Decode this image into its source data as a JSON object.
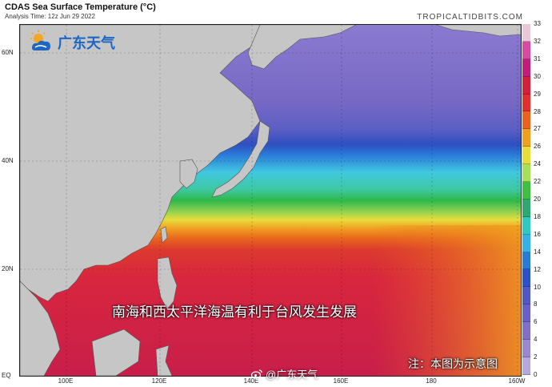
{
  "header": {
    "title": "CDAS Sea Surface Temperature (°C)",
    "subtitle": "Analysis Time: 12z Jun 29 2022",
    "source": "TROPICALTIDBITS.COM"
  },
  "map": {
    "lat_labels": [
      {
        "label": "60N"
      },
      {
        "label": "40N"
      },
      {
        "label": "20N"
      },
      {
        "label": "EQ"
      }
    ],
    "lon_labels": [
      {
        "label": "100E"
      },
      {
        "label": "120E"
      },
      {
        "label": "140E"
      },
      {
        "label": "160E"
      },
      {
        "label": "180"
      },
      {
        "label": "160W"
      }
    ],
    "colors": {
      "land": "#c6c6c6",
      "sst_cold": "#7d6cc8",
      "sst_mid": "#3db2e8",
      "sst_warm": "#e8dd3e",
      "sst_hot": "#c81e3c"
    }
  },
  "colorbar": {
    "levels": [
      "33",
      "32",
      "31",
      "30",
      "29",
      "28",
      "27",
      "26",
      "24",
      "22",
      "20",
      "18",
      "16",
      "14",
      "12",
      "10",
      "8",
      "6",
      "4",
      "2",
      "0"
    ],
    "colors": [
      "#e8c8d8",
      "#d84aa0",
      "#c01e78",
      "#d0203c",
      "#e03030",
      "#e8641e",
      "#f0a020",
      "#e8dd3e",
      "#a8e05a",
      "#40c040",
      "#2ea870",
      "#30c8c0",
      "#36b0e8",
      "#2a7ad8",
      "#2e50c8",
      "#5058c8",
      "#6860c8",
      "#8070c8",
      "#9a88d0",
      "#b4a8dc"
    ],
    "unit": "°C"
  },
  "overlay": {
    "logo_text": "广东天气",
    "caption": "南海和西太平洋海温有利于台风发生发展",
    "note": "注：本图为示意图",
    "watermark": "@广东天气"
  }
}
